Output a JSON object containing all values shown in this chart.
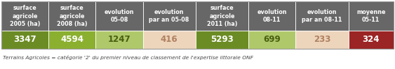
{
  "headers": [
    "surface\nagricole\n2005 (ha)",
    "surface\nagricole\n2008 (ha)",
    "evolution\n05-08",
    "evolution\npar an 05-08",
    "surface\nagricole\n2011 (ha)",
    "evolution\n08-11",
    "evolution\npar an 08-11",
    "moyenne\n05-11"
  ],
  "values": [
    "3347",
    "4594",
    "1247",
    "416",
    "5293",
    "699",
    "233",
    "324"
  ],
  "header_bg": "#676767",
  "header_fg": "#ffffff",
  "cell_colors": [
    "#6b8c24",
    "#8bb030",
    "#afc96a",
    "#edd5bc",
    "#6b8c24",
    "#afc96a",
    "#edd5bc",
    "#9b2424"
  ],
  "value_fg_colors": [
    "#ffffff",
    "#ffffff",
    "#4a5e10",
    "#b08060",
    "#ffffff",
    "#4a5e10",
    "#b08060",
    "#ffffff"
  ],
  "footnote": "Terrains Agricoles = catégorie '2' du premier niveau de classement de l'expertise littorale ONF",
  "footnote_color": "#444444",
  "col_widths": [
    1.0,
    1.0,
    1.0,
    1.12,
    1.12,
    1.0,
    1.12,
    0.96
  ],
  "border_color": "#ffffff",
  "outer_border_color": "#aaaaaa",
  "fig_width": 5.63,
  "fig_height": 0.99,
  "dpi": 100
}
